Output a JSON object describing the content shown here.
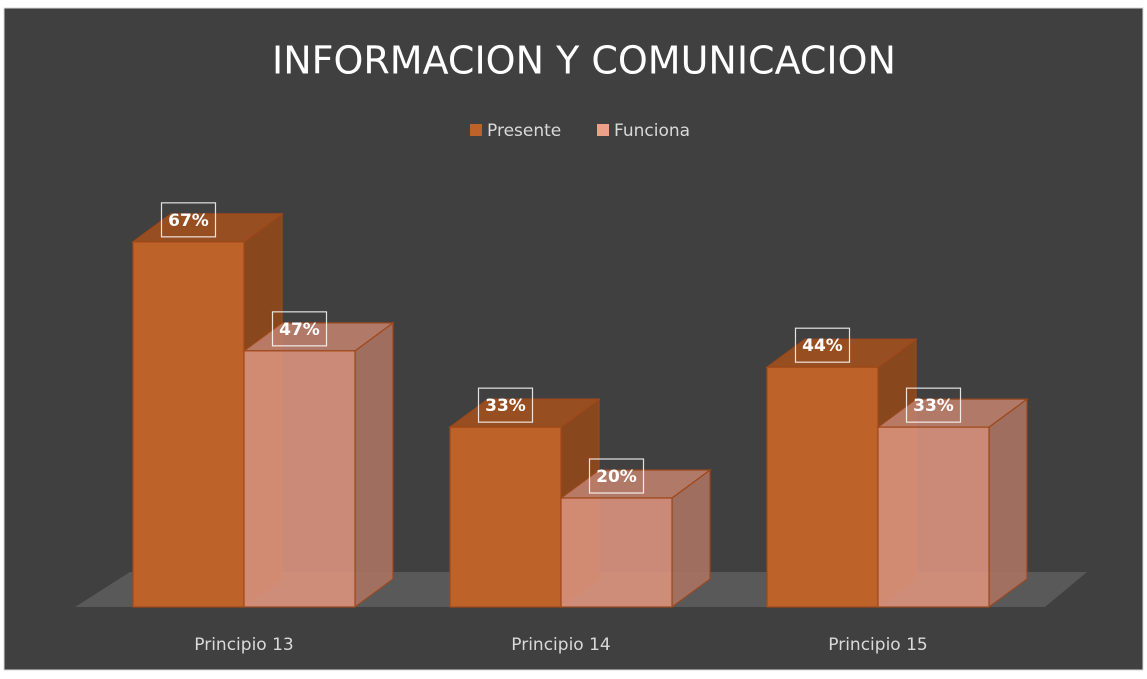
{
  "chart_data": {
    "type": "bar3d",
    "title": "INFORMACION Y COMUNICACION",
    "categories": [
      "Principio 13",
      "Principio 14",
      "Principio 15"
    ],
    "series": [
      {
        "name": "Presente",
        "color": "#bd6228",
        "values": [
          67,
          33,
          44
        ],
        "value_labels": [
          "67%",
          "33%",
          "44%"
        ]
      },
      {
        "name": "Funciona",
        "color": "#eea088",
        "values": [
          47,
          20,
          33
        ],
        "value_labels": [
          "47%",
          "20%",
          "33%"
        ]
      }
    ],
    "legend": "top"
  }
}
